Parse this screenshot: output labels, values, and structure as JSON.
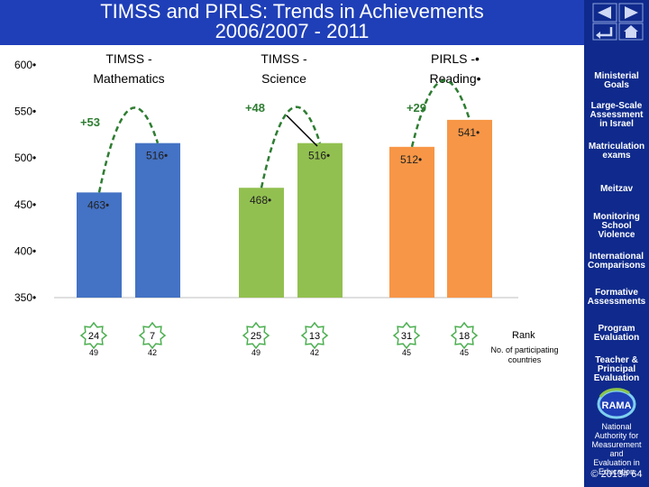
{
  "title_line1": "TIMSS and PIRLS: Trends in Achievements",
  "title_line2": "2006/2007 - 2011",
  "nav": {
    "prev_icon": "triangle-left-icon",
    "next_icon": "triangle-right-icon",
    "return_icon": "return-arrow-icon",
    "home_icon": "home-icon"
  },
  "menu": [
    {
      "label_lines": [
        "Ministerial",
        "Goals"
      ]
    },
    {
      "label_lines": [
        "Large-Scale",
        "Assessment",
        "in Israel"
      ]
    },
    {
      "label_lines": [
        "Matriculation",
        "exams"
      ]
    },
    {
      "label_lines": [
        "Meitzav"
      ]
    },
    {
      "label_lines": [
        "Monitoring",
        "School",
        "Violence"
      ]
    },
    {
      "label_lines": [
        "International",
        "Comparisons"
      ]
    },
    {
      "label_lines": [
        "Formative",
        "Assessments"
      ]
    },
    {
      "label_lines": [
        "Program",
        "Evaluation"
      ]
    },
    {
      "label_lines": [
        "Teacher &",
        "Principal",
        "Evaluation"
      ]
    }
  ],
  "rama_label": "RAMA",
  "authority_lines": [
    "National",
    "Authority for",
    "Measurement",
    "and",
    "Evaluation in",
    "Education"
  ],
  "copyright": "© 2013# 64",
  "chart_data": {
    "type": "bar",
    "ylim": [
      350,
      600
    ],
    "yticks": [
      "600•",
      "550•",
      "500•",
      "450•",
      "400•",
      "350•"
    ],
    "ytick_values": [
      600,
      550,
      500,
      450,
      400,
      350
    ],
    "groups": [
      {
        "label_lines": [
          "TIMSS -",
          "Mathematics"
        ]
      },
      {
        "label_lines": [
          "TIMSS -",
          "Science"
        ]
      },
      {
        "label_lines": [
          "PIRLS -•",
          "Reading•"
        ]
      }
    ],
    "bars": [
      {
        "group": 0,
        "value": 463,
        "label": "463•",
        "color": "#4472c4",
        "rank": "24",
        "participants": "49"
      },
      {
        "group": 0,
        "value": 516,
        "label": "516•",
        "color": "#4472c4",
        "rank": "7",
        "participants": "42"
      },
      {
        "group": 1,
        "value": 468,
        "label": "468•",
        "color": "#92c050",
        "rank": "25",
        "participants": "49"
      },
      {
        "group": 1,
        "value": 516,
        "label": "516•",
        "color": "#92c050",
        "rank": "13",
        "participants": "42"
      },
      {
        "group": 2,
        "value": 512,
        "label": "512•",
        "color": "#f79646",
        "rank": "31",
        "participants": "45"
      },
      {
        "group": 2,
        "value": 541,
        "label": "541•",
        "color": "#f79646",
        "rank": "18",
        "participants": "45"
      }
    ],
    "gains": [
      {
        "group": 0,
        "label": "+53"
      },
      {
        "group": 1,
        "label": "+48"
      },
      {
        "group": 2,
        "label": "+29"
      }
    ],
    "rank_label": "Rank",
    "participants_label_lines": [
      "No. of participating",
      "countries"
    ],
    "gain_arrow_color": "#2e7d32",
    "rank_badge_border": "#4caf50",
    "grid": false
  }
}
